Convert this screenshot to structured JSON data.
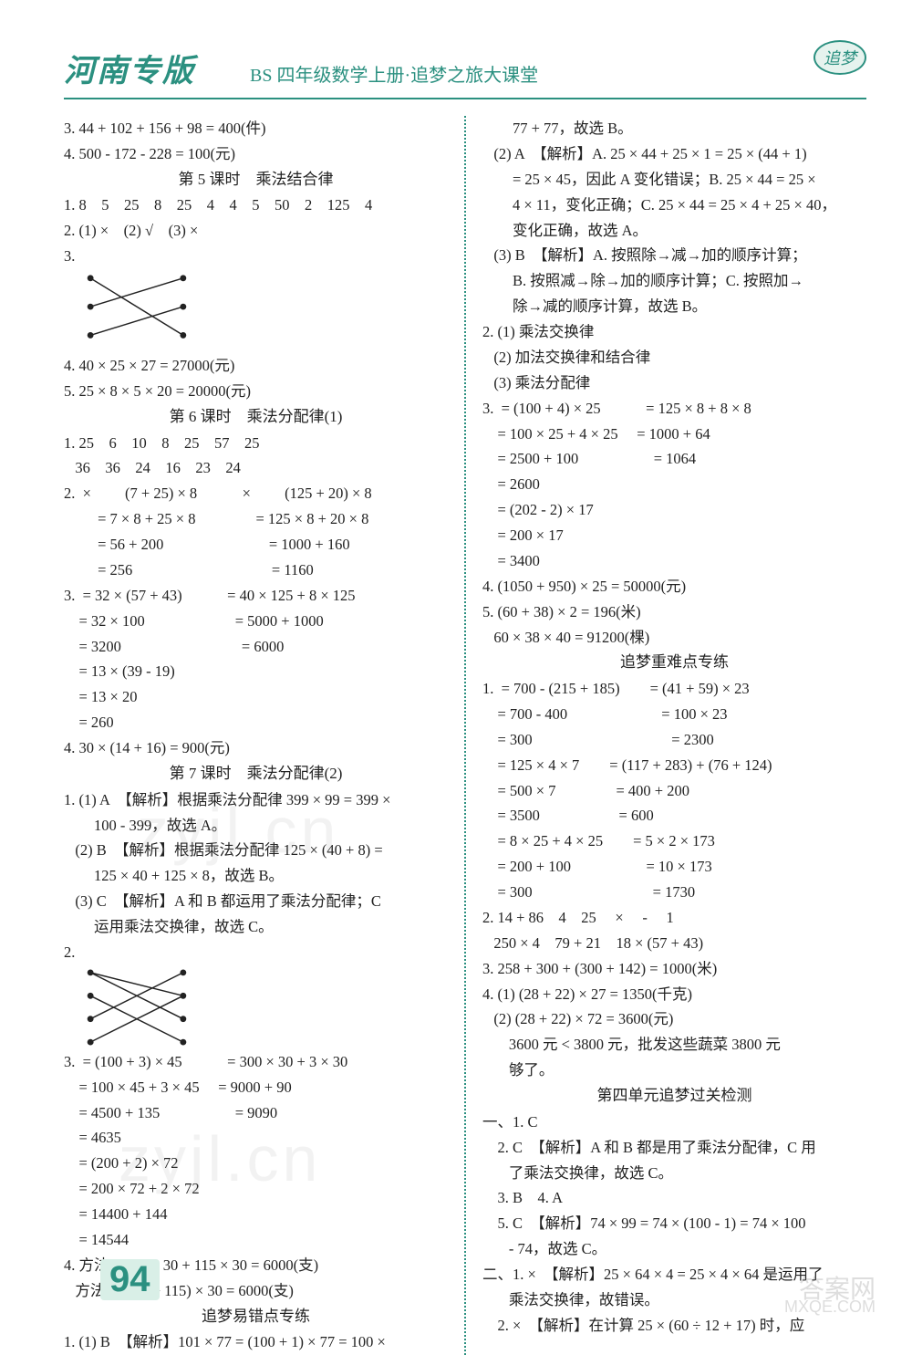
{
  "header": {
    "title": "河南专版",
    "subtitle": "BS 四年级数学上册·追梦之旅大课堂",
    "badge": "追梦"
  },
  "page_number": "94",
  "watermarks": {
    "wm": "zyjl.cn",
    "foot": "答案网",
    "url": "MXQE.COM"
  },
  "left": [
    "3. 44 + 102 + 156 + 98 = 400(件)",
    "4. 500 - 172 - 228 = 100(元)",
    {
      "cls": "lesson-title",
      "t": "第 5 课时　乘法结合律"
    },
    "1. 8　5　25　8　25　4　4　5　50　2　125　4",
    "2. (1) ×　(2) √　(3) ×",
    "3.",
    {
      "diagram": "x1"
    },
    "4. 40 × 25 × 27 = 27000(元)",
    "5. 25 × 8 × 5 × 20 = 20000(元)",
    {
      "cls": "lesson-title",
      "t": "第 6 课时　乘法分配律(1)"
    },
    "1. 25　6　10　8　25　57　25",
    "   36　36　24　16　23　24",
    "2.  ×　　 (7 + 25) × 8　　　×　　 (125 + 20) × 8",
    "         = 7 × 8 + 25 × 8　　　　= 125 × 8 + 20 × 8",
    "         = 56 + 200　　　　　　　= 1000 + 160",
    "         = 256　　　　　　　　　 = 1160",
    "3.  = 32 × (57 + 43)　　　= 40 × 125 + 8 × 125",
    "    = 32 × 100　　　　　　= 5000 + 1000",
    "    = 3200　　　　　　　　= 6000",
    "    = 13 × (39 - 19)",
    "    = 13 × 20",
    "    = 260",
    "4. 30 × (14 + 16) = 900(元)",
    {
      "cls": "lesson-title",
      "t": "第 7 课时　乘法分配律(2)"
    },
    "1. (1) A　【解析】根据乘法分配律 399 × 99 = 399 ×",
    "        100 - 399，故选 A。",
    "   (2) B　【解析】根据乘法分配律 125 × (40 + 8) =",
    "        125 × 40 + 125 × 8，故选 B。",
    "   (3) C　【解析】A 和 B 都运用了乘法分配律；C",
    "        运用乘法交换律，故选 C。",
    "2.",
    {
      "diagram": "x2"
    },
    "3.  = (100 + 3) × 45　　　= 300 × 30 + 3 × 30",
    "    = 100 × 45 + 3 × 45　 = 9000 + 90",
    "    = 4500 + 135　　　　　= 9090",
    "    = 4635",
    "    = (200 + 2) × 72",
    "    = 200 × 72 + 2 × 72",
    "    = 14400 + 144",
    "    = 14544",
    "4. 方法一: 85 × 30 + 115 × 30 = 6000(支)",
    "   方法二: (85 + 115) × 30 = 6000(支)",
    {
      "cls": "section-title",
      "t": "追梦易错点专练"
    },
    "1. (1) B　【解析】101 × 77 = (100 + 1) × 77 = 100 ×"
  ],
  "right": [
    "        77 + 77，故选 B。",
    "   (2) A　【解析】A. 25 × 44 + 25 × 1 = 25 × (44 + 1)",
    "        = 25 × 45，因此 A 变化错误；B. 25 × 44 = 25 ×",
    "        4 × 11，变化正确；C. 25 × 44 = 25 × 4 + 25 × 40，",
    "        变化正确，故选 A。",
    "   (3) B　【解析】A. 按照除→减→加的顺序计算；",
    "        B. 按照减→除→加的顺序计算；C. 按照加→",
    "        除→减的顺序计算，故选 B。",
    "2. (1) 乘法交换律",
    "   (2) 加法交换律和结合律",
    "   (3) 乘法分配律",
    "3.  = (100 + 4) × 25　　　= 125 × 8 + 8 × 8",
    "    = 100 × 25 + 4 × 25　 = 1000 + 64",
    "    = 2500 + 100　　　　　= 1064",
    "    = 2600",
    "    = (202 - 2) × 17",
    "    = 200 × 17",
    "    = 3400",
    "4. (1050 + 950) × 25 = 50000(元)",
    "5. (60 + 38) × 2 = 196(米)",
    "   60 × 38 × 40 = 91200(棵)",
    {
      "cls": "section-title",
      "t": "追梦重难点专练"
    },
    "1.  = 700 - (215 + 185)　　= (41 + 59) × 23",
    "    = 700 - 400　　　　　　 = 100 × 23",
    "    = 300　　　　　　　　　 = 2300",
    "    = 125 × 4 × 7　　= (117 + 283) + (76 + 124)",
    "    = 500 × 7　　　　= 400 + 200",
    "    = 3500　　　　　 = 600",
    "    = 8 × 25 + 4 × 25　　= 5 × 2 × 173",
    "    = 200 + 100　　　　　= 10 × 173",
    "    = 300　　　　　　　　= 1730",
    "2. 14 + 86　4　25　 ×　 -　 1",
    "   250 × 4　79 + 21　18 × (57 + 43)",
    "3. 258 + 300 + (300 + 142) = 1000(米)",
    "4. (1) (28 + 22) × 27 = 1350(千克)",
    "   (2) (28 + 22) × 72 = 3600(元)",
    "       3600 元 < 3800 元，批发这些蔬菜 3800 元",
    "       够了。",
    {
      "cls": "section-title",
      "t": "第四单元追梦过关检测"
    },
    "一、1. C",
    "    2. C　【解析】A 和 B 都是用了乘法分配律，C 用",
    "       了乘法交换律，故选 C。",
    "    3. B　4. A",
    "    5. C　【解析】74 × 99 = 74 × (100 - 1) = 74 × 100",
    "       - 74，故选 C。",
    "二、1. ×　【解析】25 × 64 × 4 = 25 × 4 × 64 是运用了",
    "       乘法交换律，故错误。",
    "    2. ×　【解析】在计算 25 × (60 ÷ 12 + 17) 时，应"
  ],
  "diagrams": {
    "x1": {
      "left_dots": [
        [
          8,
          8
        ],
        [
          8,
          40
        ],
        [
          8,
          72
        ]
      ],
      "right_dots": [
        [
          112,
          8
        ],
        [
          112,
          40
        ],
        [
          112,
          72
        ]
      ],
      "lines": [
        [
          8,
          8,
          112,
          72
        ],
        [
          8,
          40,
          112,
          8
        ],
        [
          8,
          72,
          112,
          40
        ]
      ]
    },
    "x2": {
      "left_dots": [
        [
          8,
          6
        ],
        [
          8,
          32
        ],
        [
          8,
          58
        ],
        [
          8,
          84
        ]
      ],
      "right_dots": [
        [
          112,
          6
        ],
        [
          112,
          32
        ],
        [
          112,
          58
        ],
        [
          112,
          84
        ]
      ],
      "lines": [
        [
          8,
          6,
          112,
          58
        ],
        [
          8,
          32,
          112,
          84
        ],
        [
          8,
          58,
          112,
          6
        ],
        [
          8,
          84,
          112,
          32
        ],
        [
          8,
          6,
          112,
          32
        ]
      ]
    }
  }
}
